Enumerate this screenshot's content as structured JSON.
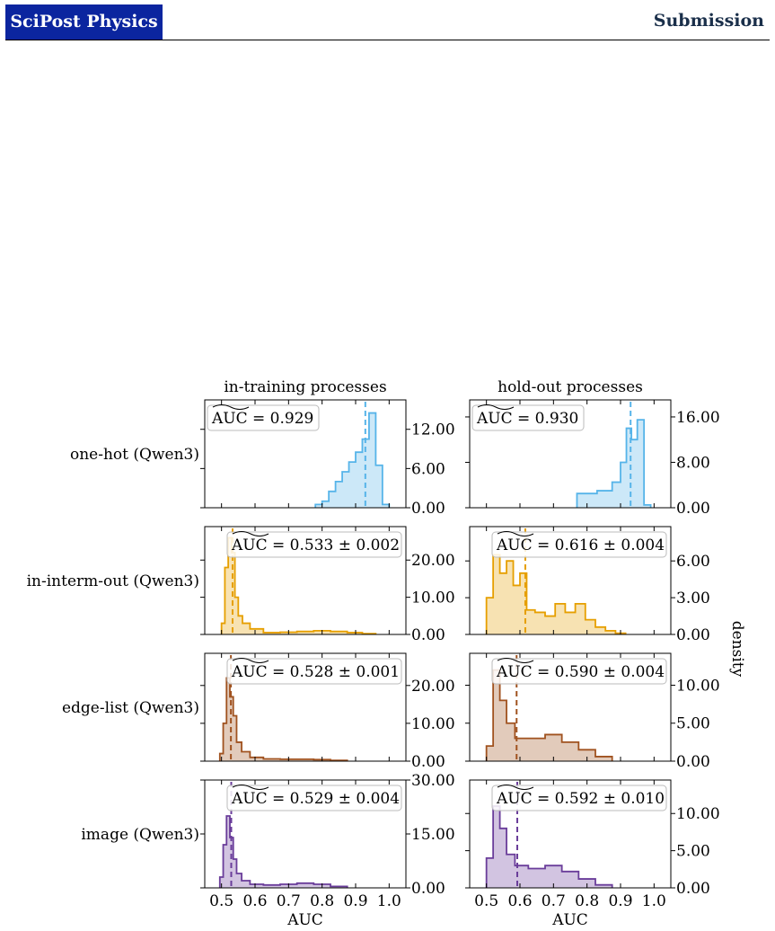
{
  "header": {
    "journal": "SciPost Physics",
    "label": "Submission"
  },
  "figure": {
    "col_titles": [
      "in-training processes",
      "hold-out processes"
    ],
    "row_labels": [
      "one-hot (Qwen3)",
      "in-interm-out (Qwen3)",
      "edge-list (Qwen3)",
      "image (Qwen3)"
    ],
    "xlabel": "AUC",
    "ylabel": "density",
    "xticklabels": [
      "0.5",
      "0.6",
      "0.7",
      "0.8",
      "0.9",
      "1.0"
    ]
  },
  "chart_data": [
    {
      "type": "area",
      "row": 0,
      "col": 0,
      "color": "#56b4e9",
      "annotation": "AUC = 0.929",
      "median": 0.929,
      "xlim": [
        0.45,
        1.05
      ],
      "ylim": [
        0,
        16.5
      ],
      "yticks": [
        0,
        6,
        12
      ],
      "yticklabels": [
        "0.00",
        "6.00",
        "12.00"
      ],
      "x": [
        0.79,
        0.81,
        0.83,
        0.85,
        0.87,
        0.89,
        0.91,
        0.93,
        0.95,
        0.97,
        0.99
      ],
      "values": [
        0.5,
        1.0,
        2.5,
        4.0,
        5.5,
        7.0,
        8.5,
        10.5,
        14.5,
        6.5,
        0.5
      ]
    },
    {
      "type": "area",
      "row": 0,
      "col": 1,
      "color": "#56b4e9",
      "annotation": "AUC = 0.930",
      "median": 0.93,
      "xlim": [
        0.45,
        1.05
      ],
      "ylim": [
        0,
        19
      ],
      "yticks": [
        0,
        8,
        16
      ],
      "yticklabels": [
        "0.00",
        "8.00",
        "16.00"
      ],
      "x": [
        0.8,
        0.86,
        0.89,
        0.91,
        0.925,
        0.94,
        0.96,
        0.98
      ],
      "values": [
        2.5,
        3.0,
        4.5,
        8.0,
        14.0,
        12.0,
        15.5,
        0.5
      ]
    },
    {
      "type": "area",
      "row": 1,
      "col": 0,
      "color": "#e69f00",
      "annotation": "AUC = 0.533 ± 0.002",
      "median": 0.533,
      "xlim": [
        0.45,
        1.05
      ],
      "ylim": [
        0,
        29
      ],
      "yticks": [
        0,
        10,
        20
      ],
      "yticklabels": [
        "0.00",
        "10.00",
        "20.00"
      ],
      "x": [
        0.505,
        0.515,
        0.525,
        0.535,
        0.545,
        0.555,
        0.57,
        0.6,
        0.65,
        0.7,
        0.75,
        0.8,
        0.85,
        0.9,
        0.94
      ],
      "values": [
        3.0,
        18.0,
        26.0,
        22.0,
        10.0,
        5.0,
        3.0,
        1.5,
        0.5,
        0.6,
        0.8,
        1.0,
        0.8,
        0.5,
        0.2
      ]
    },
    {
      "type": "area",
      "row": 1,
      "col": 1,
      "color": "#e69f00",
      "annotation": "AUC = 0.616 ± 0.004",
      "median": 0.616,
      "xlim": [
        0.45,
        1.05
      ],
      "ylim": [
        0,
        8.8
      ],
      "yticks": [
        0,
        3,
        6
      ],
      "yticklabels": [
        "0.00",
        "3.00",
        "6.00"
      ],
      "x": [
        0.51,
        0.53,
        0.55,
        0.57,
        0.59,
        0.61,
        0.63,
        0.66,
        0.69,
        0.72,
        0.75,
        0.78,
        0.81,
        0.84,
        0.87,
        0.9
      ],
      "values": [
        3.0,
        6.5,
        5.0,
        6.0,
        4.0,
        5.0,
        2.0,
        1.8,
        1.5,
        2.5,
        1.8,
        2.5,
        1.2,
        0.6,
        0.3,
        0.1
      ]
    },
    {
      "type": "area",
      "row": 2,
      "col": 0,
      "color": "#a0521f",
      "annotation": "AUC = 0.528 ± 0.001",
      "median": 0.528,
      "xlim": [
        0.45,
        1.05
      ],
      "ylim": [
        0,
        28.5
      ],
      "yticks": [
        0,
        10,
        20
      ],
      "yticklabels": [
        "0.00",
        "10.00",
        "20.00"
      ],
      "x": [
        0.5,
        0.51,
        0.52,
        0.53,
        0.54,
        0.55,
        0.57,
        0.6,
        0.65,
        0.7,
        0.75,
        0.8,
        0.85
      ],
      "values": [
        2.0,
        10.0,
        22.0,
        17.0,
        12.0,
        5.0,
        2.5,
        1.0,
        0.6,
        0.5,
        0.5,
        0.4,
        0.2
      ]
    },
    {
      "type": "area",
      "row": 2,
      "col": 1,
      "color": "#a0521f",
      "annotation": "AUC = 0.590 ± 0.004",
      "median": 0.59,
      "xlim": [
        0.45,
        1.05
      ],
      "ylim": [
        0,
        14.2
      ],
      "yticks": [
        0,
        5,
        10
      ],
      "yticklabels": [
        "0.00",
        "5.00",
        "10.00"
      ],
      "x": [
        0.51,
        0.53,
        0.55,
        0.57,
        0.6,
        0.65,
        0.7,
        0.75,
        0.8,
        0.85
      ],
      "values": [
        2.0,
        12.0,
        8.0,
        5.0,
        3.0,
        3.0,
        3.5,
        2.5,
        1.5,
        0.6
      ]
    },
    {
      "type": "area",
      "row": 3,
      "col": 0,
      "color": "#6a3d9a",
      "annotation": "AUC = 0.529 ± 0.004",
      "median": 0.529,
      "xlim": [
        0.45,
        1.05
      ],
      "ylim": [
        0,
        30
      ],
      "yticks": [
        0,
        15,
        30
      ],
      "yticklabels": [
        "0.00",
        "15.00",
        "30.00"
      ],
      "x": [
        0.5,
        0.51,
        0.52,
        0.53,
        0.54,
        0.55,
        0.57,
        0.6,
        0.65,
        0.7,
        0.75,
        0.8,
        0.85
      ],
      "values": [
        3.0,
        12.0,
        20.0,
        14.0,
        8.0,
        4.0,
        2.0,
        1.0,
        0.8,
        1.0,
        1.3,
        1.0,
        0.4
      ]
    },
    {
      "type": "area",
      "row": 3,
      "col": 1,
      "color": "#6a3d9a",
      "annotation": "AUC = 0.592 ± 0.010",
      "median": 0.592,
      "xlim": [
        0.45,
        1.05
      ],
      "ylim": [
        0,
        14.5
      ],
      "yticks": [
        0,
        5,
        10
      ],
      "yticklabels": [
        "0.00",
        "5.00",
        "10.00"
      ],
      "x": [
        0.51,
        0.53,
        0.55,
        0.57,
        0.6,
        0.65,
        0.7,
        0.75,
        0.8,
        0.85
      ],
      "values": [
        4.0,
        11.0,
        8.0,
        4.5,
        3.0,
        2.6,
        3.0,
        2.2,
        1.2,
        0.4
      ]
    }
  ]
}
